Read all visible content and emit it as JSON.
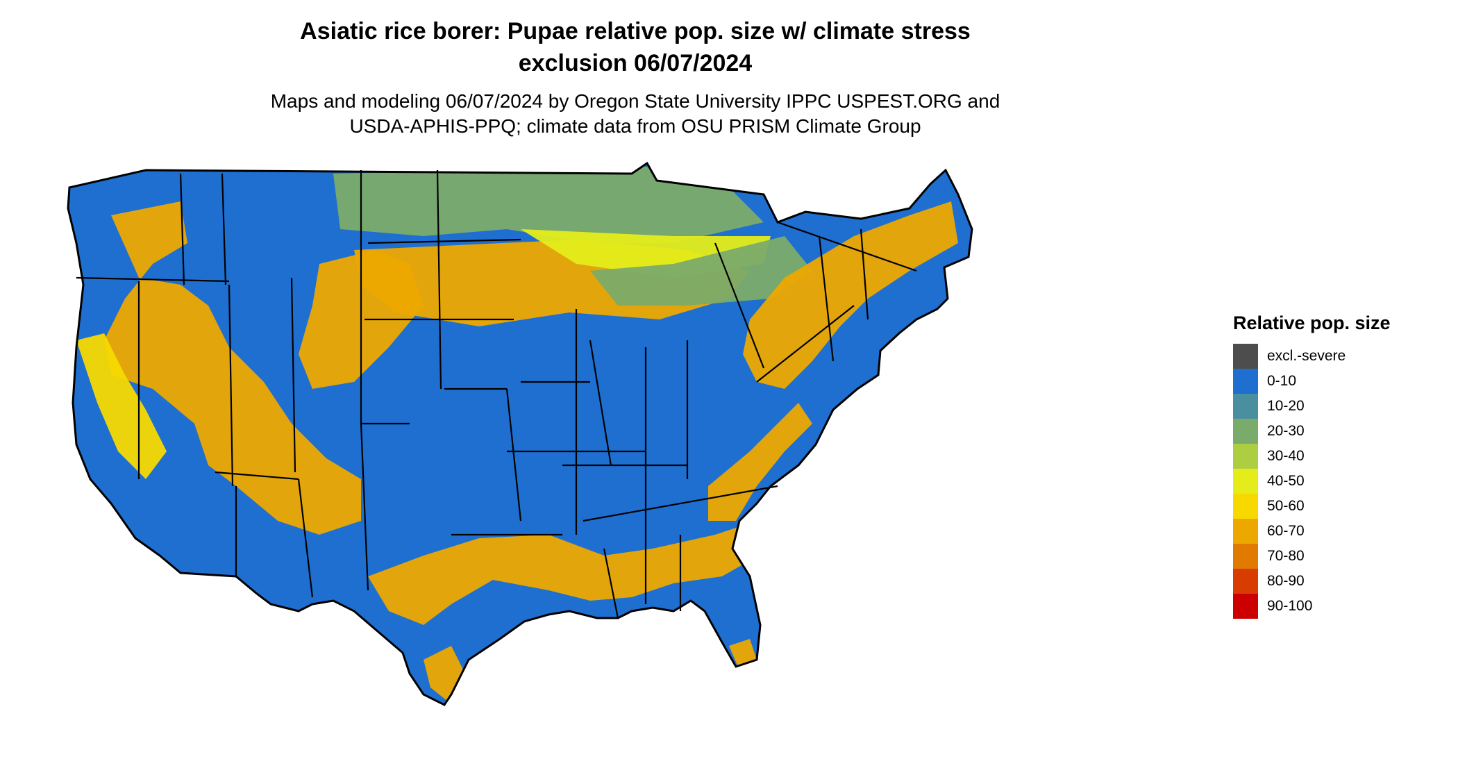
{
  "title": {
    "line1": "Asiatic rice borer: Pupae relative pop. size w/ climate stress",
    "line2": "exclusion 06/07/2024"
  },
  "subtitle": {
    "line1": "Maps and modeling 06/07/2024 by Oregon State University IPPC USPEST.ORG and",
    "line2": "USDA-APHIS-PPQ; climate data from OSU PRISM Climate Group"
  },
  "legend": {
    "title": "Relative pop. size",
    "items": [
      {
        "label": "excl.-severe",
        "color": "#4d4d4d"
      },
      {
        "label": "0-10",
        "color": "#1e6fd0"
      },
      {
        "label": "10-20",
        "color": "#4a8fa0"
      },
      {
        "label": "20-30",
        "color": "#7bab6a"
      },
      {
        "label": "30-40",
        "color": "#aece42"
      },
      {
        "label": "40-50",
        "color": "#e4ec1a"
      },
      {
        "label": "50-60",
        "color": "#f7d900"
      },
      {
        "label": "60-70",
        "color": "#eda800"
      },
      {
        "label": "70-80",
        "color": "#e07a00"
      },
      {
        "label": "80-90",
        "color": "#d83c00"
      },
      {
        "label": "90-100",
        "color": "#cc0000"
      }
    ]
  },
  "map": {
    "region": "Contiguous United States",
    "background_color": "#1e6fd0",
    "border_color": "#000000",
    "zones": [
      {
        "name": "northern-plains",
        "class": "20-30"
      },
      {
        "name": "dakotas-minnesota-band",
        "class": "60-70"
      },
      {
        "name": "upper-midwest",
        "class": "40-50"
      },
      {
        "name": "great-lakes",
        "class": "20-30"
      },
      {
        "name": "northeast",
        "class": "60-70"
      },
      {
        "name": "gulf-coast-band",
        "class": "60-70"
      },
      {
        "name": "southeast-band",
        "class": "60-70"
      },
      {
        "name": "western-mountains",
        "class": "60-70"
      },
      {
        "name": "central-colorado",
        "class": "60-70"
      },
      {
        "name": "california-valleys",
        "class": "50-60"
      },
      {
        "name": "south-florida",
        "class": "60-70"
      },
      {
        "name": "south-texas",
        "class": "60-70"
      }
    ]
  }
}
